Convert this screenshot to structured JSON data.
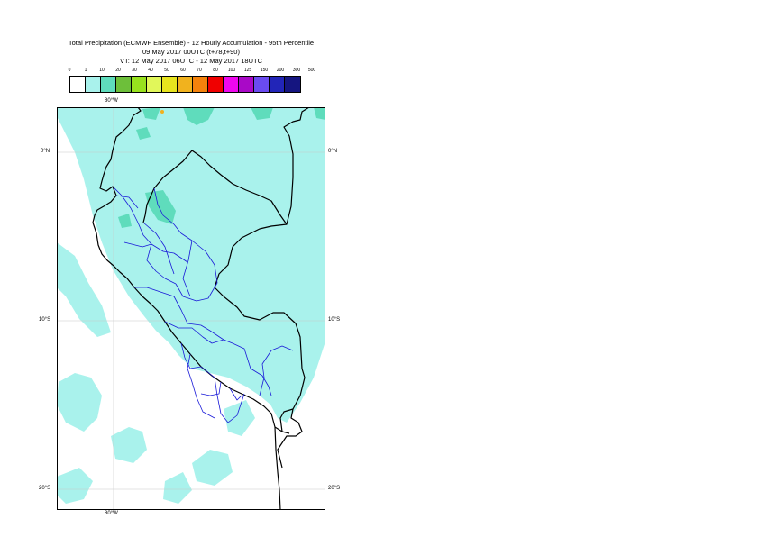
{
  "header": {
    "title_line1": "Total Precipitation (ECMWF Ensemble) - 12 Hourly Accumulation - 95th Percentile",
    "title_line2": "09 May 2017 00UTC (t+78,t+90)",
    "title_line3": "VT: 12 May 2017 06UTC - 12 May 2017 18UTC"
  },
  "legend": {
    "levels": [
      "0",
      "1",
      "10",
      "20",
      "30",
      "40",
      "50",
      "60",
      "70",
      "80",
      "100",
      "125",
      "150",
      "200",
      "300",
      "500"
    ],
    "colors": [
      "#ffffff",
      "#a9f2ec",
      "#5fdcbc",
      "#6dbf3a",
      "#98e21e",
      "#e1f75a",
      "#e7e41e",
      "#f1b21e",
      "#f4820c",
      "#f00000",
      "#ef07ef",
      "#a909c7",
      "#6a4bf0",
      "#2225b8",
      "#151580",
      "#0b0b3c"
    ]
  },
  "map": {
    "lon_labels_top": [
      "80°W"
    ],
    "lon_labels_bottom": [
      "80°W"
    ],
    "lat_labels_left": [
      "0°N",
      "10°S",
      "20°S"
    ],
    "lat_labels_right": [
      "0°N",
      "10°S",
      "20°S"
    ]
  }
}
